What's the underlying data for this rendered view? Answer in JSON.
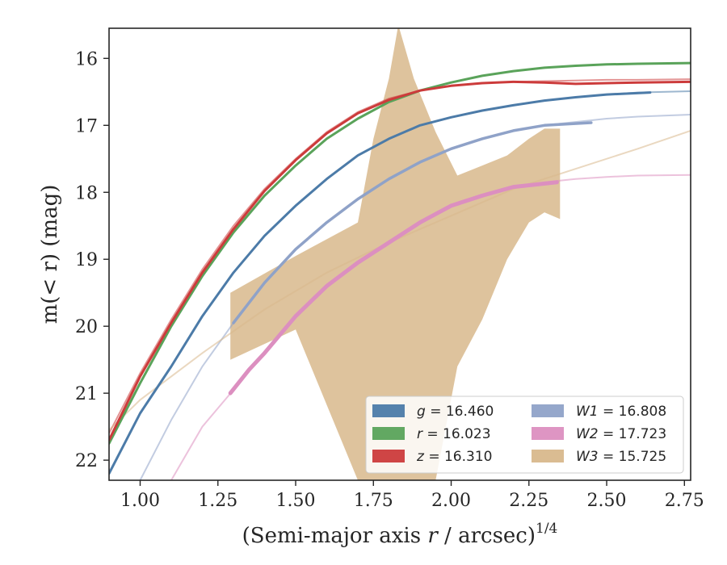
{
  "chart_data": {
    "type": "line",
    "title": "",
    "xlabel": "(Semi-major axis r / arcsec)",
    "xlabel_italic": "r",
    "xlabel_sup": "1/4",
    "ylabel": "m(< r) (mag)",
    "xlim": [
      0.9,
      2.77
    ],
    "ylim": [
      22.3,
      15.55
    ],
    "y_inverted": true,
    "grid": false,
    "legend_position": "lower-right",
    "legend_columns": 2,
    "x_ticks": [
      {
        "value": 1.0,
        "label": "1.00"
      },
      {
        "value": 1.25,
        "label": "1.25"
      },
      {
        "value": 1.5,
        "label": "1.50"
      },
      {
        "value": 1.75,
        "label": "1.75"
      },
      {
        "value": 2.0,
        "label": "2.00"
      },
      {
        "value": 2.25,
        "label": "2.25"
      },
      {
        "value": 2.5,
        "label": "2.50"
      },
      {
        "value": 2.75,
        "label": "2.75"
      }
    ],
    "y_ticks": [
      {
        "value": 16,
        "label": "16"
      },
      {
        "value": 17,
        "label": "17"
      },
      {
        "value": 18,
        "label": "18"
      },
      {
        "value": 19,
        "label": "19"
      },
      {
        "value": 20,
        "label": "20"
      },
      {
        "value": 21,
        "label": "21"
      },
      {
        "value": 22,
        "label": "22"
      }
    ],
    "series": [
      {
        "name": "g = 16.460",
        "band": "g",
        "value": "16.460",
        "color": "#4c7ba8",
        "model_x": [
          0.9,
          1.0,
          1.1,
          1.2,
          1.3,
          1.4,
          1.5,
          1.6,
          1.7,
          1.8,
          1.9,
          2.0,
          2.1,
          2.2,
          2.3,
          2.4,
          2.5,
          2.6,
          2.77
        ],
        "model_y": [
          22.2,
          21.3,
          20.6,
          19.85,
          19.2,
          18.65,
          18.2,
          17.8,
          17.45,
          17.2,
          17.0,
          16.88,
          16.78,
          16.7,
          16.63,
          16.58,
          16.54,
          16.51,
          16.49
        ],
        "data_x": [
          0.9,
          1.0,
          1.1,
          1.2,
          1.3,
          1.4,
          1.5,
          1.6,
          1.7,
          1.8,
          1.9,
          2.0,
          2.1,
          2.2,
          2.3,
          2.4,
          2.5,
          2.64
        ],
        "data_y": [
          22.2,
          21.3,
          20.6,
          19.85,
          19.2,
          18.65,
          18.2,
          17.8,
          17.45,
          17.2,
          17.0,
          16.88,
          16.78,
          16.7,
          16.63,
          16.58,
          16.54,
          16.51
        ]
      },
      {
        "name": "r = 16.023",
        "band": "r",
        "value": "16.023",
        "color": "#5aa35a",
        "model_x": [
          0.9,
          1.0,
          1.1,
          1.2,
          1.3,
          1.4,
          1.5,
          1.6,
          1.7,
          1.8,
          1.9,
          2.0,
          2.1,
          2.2,
          2.3,
          2.4,
          2.5,
          2.6,
          2.77
        ],
        "model_y": [
          21.75,
          20.85,
          20.0,
          19.25,
          18.6,
          18.05,
          17.6,
          17.2,
          16.9,
          16.65,
          16.48,
          16.36,
          16.26,
          16.19,
          16.14,
          16.11,
          16.09,
          16.08,
          16.07
        ],
        "data_x": [
          0.9,
          1.0,
          1.1,
          1.2,
          1.3,
          1.4,
          1.5,
          1.6,
          1.7,
          1.8,
          1.9,
          2.0,
          2.1,
          2.2,
          2.3,
          2.4,
          2.5,
          2.6,
          2.77
        ],
        "data_y": [
          21.75,
          20.85,
          20.0,
          19.25,
          18.6,
          18.05,
          17.6,
          17.2,
          16.9,
          16.65,
          16.48,
          16.36,
          16.26,
          16.19,
          16.14,
          16.11,
          16.09,
          16.08,
          16.07
        ]
      },
      {
        "name": "z = 16.310",
        "band": "z",
        "value": "16.310",
        "color": "#cc3b3b",
        "model_x": [
          0.9,
          1.0,
          1.1,
          1.2,
          1.3,
          1.4,
          1.5,
          1.6,
          1.7,
          1.8,
          1.9,
          2.0,
          2.1,
          2.2,
          2.3,
          2.4,
          2.5,
          2.6,
          2.77
        ],
        "model_y": [
          21.6,
          20.7,
          19.9,
          19.15,
          18.5,
          17.95,
          17.5,
          17.1,
          16.8,
          16.6,
          16.48,
          16.41,
          16.37,
          16.35,
          16.34,
          16.33,
          16.32,
          16.32,
          16.31
        ],
        "data_x": [
          0.9,
          1.0,
          1.1,
          1.2,
          1.3,
          1.4,
          1.5,
          1.6,
          1.7,
          1.8,
          1.9,
          2.0,
          2.1,
          2.2,
          2.3,
          2.4,
          2.5,
          2.6,
          2.77
        ],
        "data_y": [
          21.7,
          20.75,
          19.95,
          19.2,
          18.55,
          17.98,
          17.52,
          17.12,
          16.82,
          16.62,
          16.48,
          16.41,
          16.37,
          16.35,
          16.36,
          16.38,
          16.37,
          16.36,
          16.35
        ]
      },
      {
        "name": "W1 = 16.808",
        "band": "W1",
        "value": "16.808",
        "color": "#8fa2c8",
        "model_x": [
          1.0,
          1.1,
          1.2,
          1.3,
          1.4,
          1.5,
          1.6,
          1.7,
          1.8,
          1.9,
          2.0,
          2.1,
          2.2,
          2.3,
          2.4,
          2.5,
          2.6,
          2.77
        ],
        "model_y": [
          22.3,
          21.4,
          20.6,
          19.95,
          19.35,
          18.85,
          18.45,
          18.1,
          17.8,
          17.55,
          17.35,
          17.2,
          17.08,
          17.0,
          16.95,
          16.9,
          16.87,
          16.84
        ],
        "data_x": [
          1.3,
          1.4,
          1.5,
          1.6,
          1.7,
          1.8,
          1.9,
          2.0,
          2.1,
          2.2,
          2.3,
          2.45
        ],
        "data_y": [
          19.95,
          19.35,
          18.85,
          18.45,
          18.1,
          17.8,
          17.55,
          17.35,
          17.2,
          17.08,
          17.0,
          16.96
        ]
      },
      {
        "name": "W2 = 17.723",
        "band": "W2",
        "value": "17.723",
        "color": "#dc8fc0",
        "model_x": [
          1.1,
          1.2,
          1.3,
          1.4,
          1.5,
          1.6,
          1.7,
          1.8,
          1.9,
          2.0,
          2.1,
          2.2,
          2.3,
          2.4,
          2.5,
          2.6,
          2.77
        ],
        "model_y": [
          22.3,
          21.5,
          20.95,
          20.4,
          19.85,
          19.4,
          19.05,
          18.75,
          18.45,
          18.2,
          18.05,
          17.92,
          17.85,
          17.8,
          17.77,
          17.75,
          17.74
        ],
        "data_x": [
          1.29,
          1.35,
          1.4,
          1.5,
          1.6,
          1.7,
          1.8,
          1.9,
          2.0,
          2.1,
          2.2,
          2.34
        ],
        "data_y": [
          21.0,
          20.65,
          20.4,
          19.85,
          19.4,
          19.05,
          18.75,
          18.45,
          18.2,
          18.05,
          17.92,
          17.85
        ]
      },
      {
        "name": "W3 = 15.725",
        "band": "W3",
        "value": "15.725",
        "color": "#d8b88c",
        "model_x": [
          0.9,
          1.0,
          1.2,
          1.4,
          1.6,
          1.8,
          2.0,
          2.2,
          2.4,
          2.6,
          2.77
        ],
        "model_y": [
          21.55,
          21.1,
          20.4,
          19.75,
          19.2,
          18.75,
          18.35,
          17.95,
          17.65,
          17.35,
          17.08
        ],
        "band_x": [
          1.29,
          1.5,
          1.7,
          1.75,
          1.8,
          1.83,
          1.88,
          1.95,
          2.02,
          2.1,
          2.18,
          2.25,
          2.3,
          2.35
        ],
        "band_upper": [
          19.5,
          18.95,
          18.45,
          17.2,
          16.3,
          15.5,
          16.3,
          17.1,
          17.75,
          17.6,
          17.45,
          17.2,
          17.05,
          17.05
        ],
        "band_lower": [
          20.5,
          20.05,
          22.3,
          22.3,
          22.3,
          22.3,
          22.3,
          22.3,
          20.6,
          19.9,
          19.0,
          18.45,
          18.3,
          18.4
        ]
      }
    ]
  }
}
